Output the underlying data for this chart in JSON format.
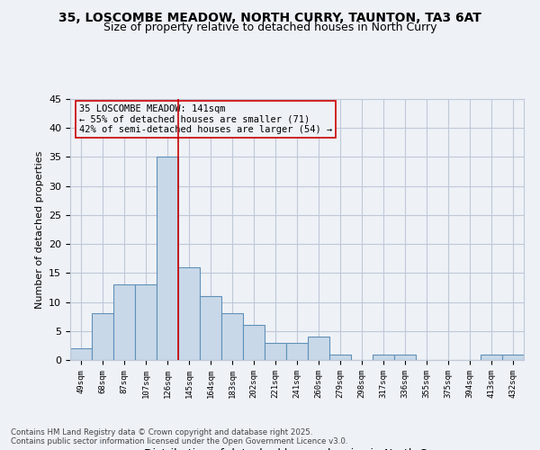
{
  "title_line1": "35, LOSCOMBE MEADOW, NORTH CURRY, TAUNTON, TA3 6AT",
  "title_line2": "Size of property relative to detached houses in North Curry",
  "xlabel": "Distribution of detached houses by size in North Curry",
  "ylabel": "Number of detached properties",
  "bar_labels": [
    "49sqm",
    "68sqm",
    "87sqm",
    "107sqm",
    "126sqm",
    "145sqm",
    "164sqm",
    "183sqm",
    "202sqm",
    "221sqm",
    "241sqm",
    "260sqm",
    "279sqm",
    "298sqm",
    "317sqm",
    "336sqm",
    "355sqm",
    "375sqm",
    "394sqm",
    "413sqm",
    "432sqm"
  ],
  "bar_values": [
    2,
    8,
    13,
    13,
    35,
    16,
    11,
    8,
    6,
    3,
    3,
    4,
    1,
    0,
    1,
    1,
    0,
    0,
    0,
    1,
    1
  ],
  "bar_color": "#c8d8e8",
  "bar_edge_color": "#6090b8",
  "grid_color": "#c0c8d8",
  "annotation_text": "35 LOSCOMBE MEADOW: 141sqm\n← 55% of detached houses are smaller (71)\n42% of semi-detached houses are larger (54) →",
  "vline_x": 4.5,
  "vline_color": "#cc0000",
  "annotation_box_edge": "#cc0000",
  "ylim": [
    0,
    45
  ],
  "yticks": [
    0,
    5,
    10,
    15,
    20,
    25,
    30,
    35,
    40,
    45
  ],
  "footnote": "Contains HM Land Registry data © Crown copyright and database right 2025.\nContains public sector information licensed under the Open Government Licence v3.0.",
  "bg_color": "#eef2f7"
}
